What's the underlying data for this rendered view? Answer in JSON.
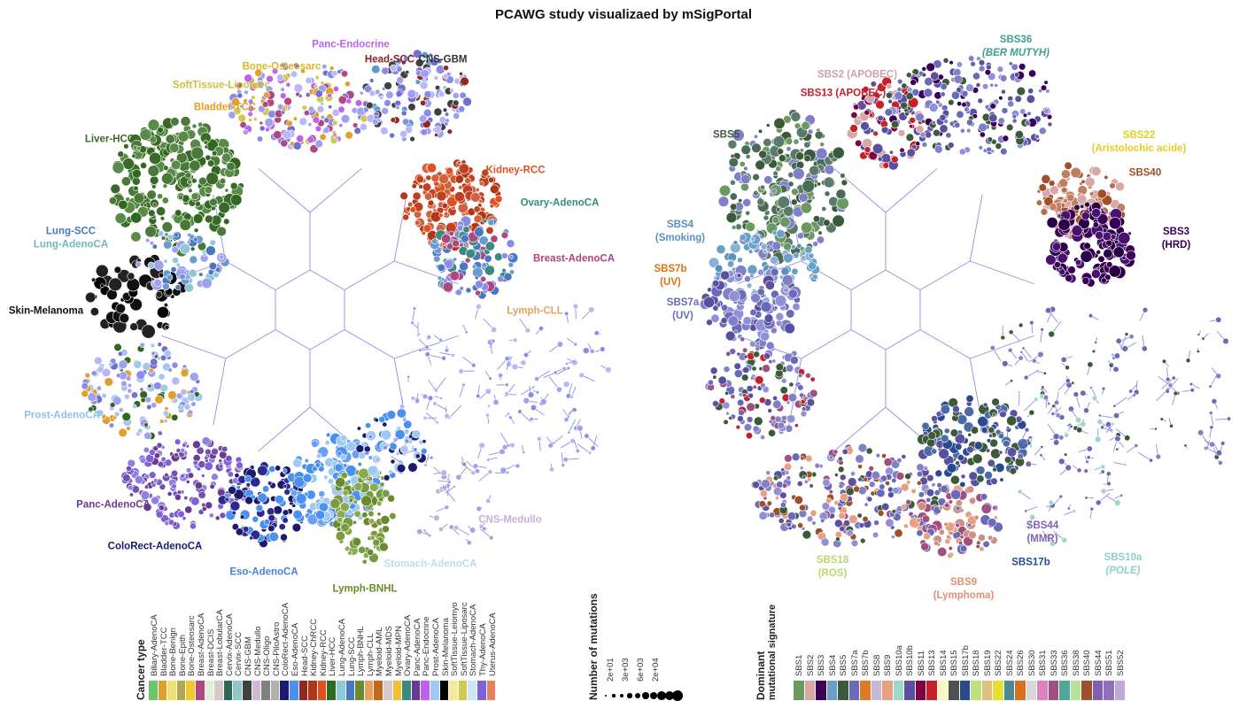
{
  "title": "PCAWG study visualizaed by mSigPortal",
  "left_panel": {
    "labels": [
      {
        "text": "Panc-Endocrine",
        "color": "#c060f0"
      },
      {
        "text": "Head-SCC",
        "color": "#8b2020"
      },
      {
        "text": "CNS-GBM",
        "color": "#333333"
      },
      {
        "text": "Bone-Osteosarc",
        "color": "#d8b828"
      },
      {
        "text": "SoftTissue-Liposarc",
        "color": "#c8c040"
      },
      {
        "text": "Bladder-TCC",
        "color": "#e0a020"
      },
      {
        "text": "Liver-HCC",
        "color": "#3a6a28"
      },
      {
        "text": "Kidney-RCC",
        "color": "#e05020"
      },
      {
        "text": "Ovary-AdenoCA",
        "color": "#3a8a80"
      },
      {
        "text": "Lung-SCC",
        "color": "#4a7ab8"
      },
      {
        "text": "Lung-AdenoCA",
        "color": "#70b8c0"
      },
      {
        "text": "Breast-AdenoCA",
        "color": "#b04080"
      },
      {
        "text": "Skin-Melanoma",
        "color": "#111111"
      },
      {
        "text": "Lymph-CLL",
        "color": "#e8a060"
      },
      {
        "text": "Prost-AdenoCA",
        "color": "#90c0f0"
      },
      {
        "text": "Panc-AdenoCA",
        "color": "#6a3a90"
      },
      {
        "text": "CNS-Medullo",
        "color": "#c8b0d8"
      },
      {
        "text": "ColoRect-AdenoCA",
        "color": "#1a1a70"
      },
      {
        "text": "Eso-AdenoCA",
        "color": "#4a80e0"
      },
      {
        "text": "Stomach-AdenoCA",
        "color": "#b8ddf0"
      },
      {
        "text": "Lymph-BNHL",
        "color": "#6a8a30"
      }
    ]
  },
  "right_panel": {
    "labels": [
      {
        "text": "SBS36",
        "sub": "(BER MUTYH)",
        "color": "#40a090"
      },
      {
        "text": "SBS2 (APOBEC)",
        "sub": "",
        "color": "#d0a0a8"
      },
      {
        "text": "SBS13 (APOBEC)",
        "sub": "",
        "color": "#c02030"
      },
      {
        "text": "SBS5",
        "sub": "",
        "color": "#3a5a3a"
      },
      {
        "text": "SBS22",
        "sub": "(Aristolochic acide)",
        "color": "#e0d020"
      },
      {
        "text": "SBS40",
        "sub": "",
        "color": "#a05020"
      },
      {
        "text": "SBS4",
        "sub": "(Smoking)",
        "color": "#5a90c0"
      },
      {
        "text": "SBS3",
        "sub": "(HRD)",
        "color": "#3a0058"
      },
      {
        "text": "SBS7b",
        "sub": "(UV)",
        "color": "#e07010"
      },
      {
        "text": "SBS7a",
        "sub": "(UV)",
        "color": "#6a6ab8"
      },
      {
        "text": "SBS44",
        "sub": "(MMR)",
        "color": "#8060b0"
      },
      {
        "text": "SBS18",
        "sub": "(ROS)",
        "color": "#b8d870"
      },
      {
        "text": "SBS17b",
        "sub": "",
        "color": "#2a4a90"
      },
      {
        "text": "SBS10a",
        "sub": "(POLE)",
        "color": "#90d0c8"
      },
      {
        "text": "SBS9",
        "sub": "(Lymphoma)",
        "color": "#e09070"
      }
    ]
  },
  "cancer_legend": {
    "title": "Cancer type",
    "items": [
      {
        "label": "Biliary-AdenoCA",
        "color": "#6cc46a"
      },
      {
        "label": "Bladder-TCC",
        "color": "#e0a030"
      },
      {
        "label": "Bone-Benign",
        "color": "#f0e070"
      },
      {
        "label": "Bone-Epith",
        "color": "#b0a850"
      },
      {
        "label": "Bone-Osteosarc",
        "color": "#f0c830"
      },
      {
        "label": "Breast-AdenoCA",
        "color": "#b04880"
      },
      {
        "label": "Breast-DCIS",
        "color": "#e0f0d8"
      },
      {
        "label": "Breast-LobularCA",
        "color": "#d8c8c8"
      },
      {
        "label": "Cervix-AdenoCA",
        "color": "#306858"
      },
      {
        "label": "Cervix-SCC",
        "color": "#90c8c8"
      },
      {
        "label": "CNS-GBM",
        "color": "#404040"
      },
      {
        "label": "CNS-Medullo",
        "color": "#d0b8d8"
      },
      {
        "label": "CNS-Oligo",
        "color": "#808080"
      },
      {
        "label": "CNS-PiloAstro",
        "color": "#b0b0b0"
      },
      {
        "label": "ColoRect-AdenoCA",
        "color": "#1a1a70"
      },
      {
        "label": "Eso-AdenoCA",
        "color": "#4a90f0"
      },
      {
        "label": "Head-SCC",
        "color": "#902820"
      },
      {
        "label": "Kidney-ChRCC",
        "color": "#b03818"
      },
      {
        "label": "Kidney-RCC",
        "color": "#e05020"
      },
      {
        "label": "Liver-HCC",
        "color": "#306820"
      },
      {
        "label": "Lung-AdenoCA",
        "color": "#90c8d8"
      },
      {
        "label": "Lung-SCC",
        "color": "#4a78c0"
      },
      {
        "label": "Lymph-BNHL",
        "color": "#6a8a30"
      },
      {
        "label": "Lymph-CLL",
        "color": "#e8a060"
      },
      {
        "label": "Myeloid-AML",
        "color": "#c06820"
      },
      {
        "label": "Myeloid-MDS",
        "color": "#d8c8d0"
      },
      {
        "label": "Myeloid-MPN",
        "color": "#f0c030"
      },
      {
        "label": "Ovary-AdenoCA",
        "color": "#3a8a80"
      },
      {
        "label": "Panc-AdenoCA",
        "color": "#6a3a90"
      },
      {
        "label": "Panc-Endocrine",
        "color": "#c060f0"
      },
      {
        "label": "Prost-AdenoCA",
        "color": "#a0c8f0"
      },
      {
        "label": "Skin-Melanoma",
        "color": "#000000"
      },
      {
        "label": "SoftTissue-Leiomyo",
        "color": "#f8e898"
      },
      {
        "label": "SoftTissue-Liposarc",
        "color": "#d0c850"
      },
      {
        "label": "Stomach-AdenoCA",
        "color": "#c8e8f8"
      },
      {
        "label": "Thy-AdenoCA",
        "color": "#8060d8"
      },
      {
        "label": "Uterus-AdenoCA",
        "color": "#e88060"
      }
    ]
  },
  "size_legend": {
    "title": "Number of mutations",
    "ticks": [
      "2e+01",
      "3e+03",
      "6e+03",
      "2e+04"
    ]
  },
  "signature_legend": {
    "title_line1": "Dominant",
    "title_line2": "mutational signature",
    "items": [
      {
        "label": "SBS1",
        "color": "#6a9a60"
      },
      {
        "label": "SBS2",
        "color": "#d8a8a8"
      },
      {
        "label": "SBS3",
        "color": "#3a0058"
      },
      {
        "label": "SBS4",
        "color": "#6aa0c8"
      },
      {
        "label": "SBS5",
        "color": "#3a5a3a"
      },
      {
        "label": "SBS7a",
        "color": "#6a6ab8"
      },
      {
        "label": "SBS7b",
        "color": "#e07a20"
      },
      {
        "label": "SBS8",
        "color": "#c8b8d8"
      },
      {
        "label": "SBS9",
        "color": "#e8a080"
      },
      {
        "label": "SBS10a",
        "color": "#a0d8c8"
      },
      {
        "label": "SBS10b",
        "color": "#5a50a0"
      },
      {
        "label": "SBS11",
        "color": "#800040"
      },
      {
        "label": "SBS13",
        "color": "#c82028"
      },
      {
        "label": "SBS14",
        "color": "#f8f8c0"
      },
      {
        "label": "SBS15",
        "color": "#505050"
      },
      {
        "label": "SBS17b",
        "color": "#2a4a90"
      },
      {
        "label": "SBS18",
        "color": "#c0e080"
      },
      {
        "label": "SBS19",
        "color": "#e0c080"
      },
      {
        "label": "SBS22",
        "color": "#e8e030"
      },
      {
        "label": "SBS24",
        "color": "#4a8a98"
      },
      {
        "label": "SBS26",
        "color": "#d87020"
      },
      {
        "label": "SBS30",
        "color": "#d8d8d8"
      },
      {
        "label": "SBS31",
        "color": "#e080c0"
      },
      {
        "label": "SBS33",
        "color": "#a05080"
      },
      {
        "label": "SBS36",
        "color": "#50a898"
      },
      {
        "label": "SBS38",
        "color": "#b8e0a0"
      },
      {
        "label": "SBS40",
        "color": "#a05028"
      },
      {
        "label": "SBS44",
        "color": "#8060b0"
      },
      {
        "label": "SBS51",
        "color": "#9070b8"
      },
      {
        "label": "SBS52",
        "color": "#c0a8d8"
      }
    ]
  }
}
